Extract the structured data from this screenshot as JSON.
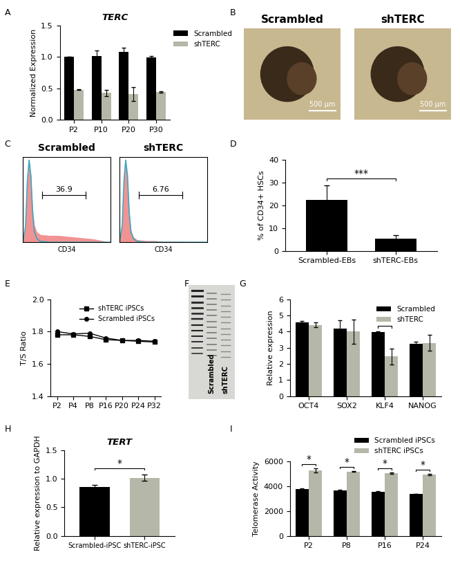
{
  "chart_data": [
    {
      "panel": "A",
      "type": "bar",
      "title": "TERC",
      "ylabel": "Normalized Expression",
      "categories": [
        "P2",
        "P10",
        "P20",
        "P30"
      ],
      "series": [
        {
          "name": "Scrambled",
          "color": "#000000",
          "values": [
            1.0,
            1.02,
            1.08,
            0.99
          ],
          "errors": [
            0.0,
            0.08,
            0.07,
            0.02
          ]
        },
        {
          "name": "shTERC",
          "color": "#b5b8a8",
          "values": [
            0.48,
            0.43,
            0.41,
            0.44
          ],
          "errors": [
            0.01,
            0.05,
            0.11,
            0.01
          ]
        }
      ],
      "ylim": [
        0,
        1.5
      ],
      "yticks": [
        {
          "value": 0,
          "label": "0.0"
        },
        0.5,
        1.0,
        1.5
      ],
      "legend": "upper right"
    },
    {
      "panel": "B",
      "type": "image",
      "images": [
        {
          "title": "Scrambled",
          "scale_bar": "500 μm"
        },
        {
          "title": "shTERC",
          "scale_bar": "500 μm"
        }
      ]
    },
    {
      "panel": "C",
      "type": "area",
      "xlabel": "CD34",
      "tick_labels": false,
      "xlim": [
        0,
        100
      ],
      "ylim": [
        0,
        100
      ],
      "x": [
        0,
        3,
        5,
        7,
        9,
        11,
        13,
        16,
        20,
        30,
        40,
        50,
        60,
        70,
        80,
        90,
        100
      ],
      "plots": [
        {
          "title": "Scrambled",
          "gate": [
            22,
            72
          ],
          "gate_label": "36.9",
          "series": [
            {
              "type": "area",
              "color": "#f08080",
              "values": [
                0,
                20,
                70,
                95,
                80,
                40,
                20,
                12,
                9,
                8,
                8,
                7,
                6,
                5,
                4,
                2,
                0
              ]
            },
            {
              "type": "line",
              "color": "#3aa8c0",
              "values": [
                0,
                20,
                72,
                96,
                78,
                35,
                12,
                4,
                1,
                0,
                0,
                0,
                0,
                0,
                0,
                0,
                0
              ]
            }
          ]
        },
        {
          "title": "shTERC",
          "gate": [
            22,
            72
          ],
          "gate_label": "6.76",
          "series": [
            {
              "type": "area",
              "color": "#f08080",
              "values": [
                0,
                22,
                72,
                96,
                78,
                36,
                14,
                6,
                3,
                2,
                2,
                1,
                1,
                1,
                0,
                0,
                0
              ]
            },
            {
              "type": "line",
              "color": "#3aa8c0",
              "values": [
                0,
                20,
                72,
                96,
                78,
                35,
                12,
                4,
                1,
                0,
                0,
                0,
                0,
                0,
                0,
                0,
                0
              ]
            }
          ]
        }
      ]
    },
    {
      "panel": "D",
      "type": "bar",
      "ylabel": "% of CD34+ HSCs",
      "categories": [
        "Scrambled-EBs",
        "shTERC-EBs"
      ],
      "values": [
        22.3,
        5.2
      ],
      "errors": [
        6.5,
        1.5
      ],
      "colors": [
        "#000000",
        "#000000"
      ],
      "ylim": [
        0,
        40
      ],
      "yticks": [
        0,
        10,
        20,
        30,
        40
      ],
      "annotations": [
        {
          "text": "***",
          "between": [
            0,
            1
          ]
        }
      ]
    },
    {
      "panel": "E",
      "type": "line",
      "ylabel": "T/S Ratio",
      "categories": [
        "P2",
        "P4",
        "P8",
        "P16",
        "P20",
        "P24",
        "P32"
      ],
      "series": [
        {
          "name": "shTERC iPSCs",
          "color": "#000000",
          "marker": "square",
          "values": [
            1.78,
            1.78,
            1.77,
            1.75,
            1.745,
            1.74,
            1.735
          ]
        },
        {
          "name": "Scrambled iPSCs",
          "color": "#000000",
          "marker": "circle",
          "values": [
            1.8,
            1.785,
            1.79,
            1.76,
            1.745,
            1.745,
            1.74
          ]
        }
      ],
      "ylim": [
        1.4,
        2.0
      ],
      "yticks": [
        1.4,
        1.6,
        1.8,
        {
          "value": 2.0,
          "label": "2.0"
        }
      ],
      "legend": "upper right"
    },
    {
      "panel": "F",
      "type": "image",
      "lanes": [
        "Scrambled",
        "shTERC"
      ]
    },
    {
      "panel": "G",
      "type": "bar",
      "ylabel": "Relative expression",
      "categories": [
        "OCT4",
        "SOX2",
        "KLF4",
        "NANOG"
      ],
      "series": [
        {
          "name": "Scrambled",
          "color": "#000000",
          "values": [
            4.55,
            4.2,
            3.95,
            3.25
          ],
          "errors": [
            0.1,
            0.5,
            0.05,
            0.12
          ]
        },
        {
          "name": "shTERC",
          "color": "#b5b8a8",
          "values": [
            4.4,
            4.0,
            2.45,
            3.3
          ],
          "errors": [
            0.15,
            0.75,
            0.5,
            0.5
          ]
        }
      ],
      "ylim": [
        0,
        6
      ],
      "yticks": [
        0,
        1,
        2,
        3,
        4,
        5,
        6
      ],
      "legend": "upper right",
      "annotations": [
        {
          "text": "*",
          "category": "KLF4"
        }
      ]
    },
    {
      "panel": "H",
      "type": "bar",
      "title": "TERT",
      "ylabel": "Relative expression to GAPDH",
      "categories": [
        "Scrambled-iPSC",
        "shTERC-iPSC"
      ],
      "values": [
        0.86,
        1.02
      ],
      "errors": [
        0.03,
        0.06
      ],
      "colors": [
        "#000000",
        "#b5b8a8"
      ],
      "ylim": [
        0,
        1.5
      ],
      "yticks": [
        {
          "value": 0,
          "label": "0.0"
        },
        0.5,
        1.0,
        1.5
      ],
      "annotations": [
        {
          "text": "*",
          "between": [
            0,
            1
          ]
        }
      ]
    },
    {
      "panel": "I",
      "type": "bar",
      "ylabel": "Telomerase Activity",
      "categories": [
        "P2",
        "P8",
        "P16",
        "P24"
      ],
      "series": [
        {
          "name": "Scrambled iPSCs",
          "color": "#000000",
          "values": [
            3800,
            3680,
            3560,
            3400
          ],
          "errors": [
            40,
            40,
            40,
            20
          ]
        },
        {
          "name": "shTERC iPSCs",
          "color": "#b5b8a8",
          "values": [
            5300,
            5200,
            5080,
            4960
          ],
          "errors": [
            150,
            30,
            40,
            50
          ]
        }
      ],
      "ylim": [
        0,
        6000
      ],
      "yticks": [
        0,
        2000,
        4000,
        6000
      ],
      "legend": "upper right",
      "annotations": [
        {
          "text": "*",
          "category": "P2"
        },
        {
          "text": "*",
          "category": "P8"
        },
        {
          "text": "*",
          "category": "P16"
        },
        {
          "text": "*",
          "category": "P24"
        }
      ]
    }
  ]
}
